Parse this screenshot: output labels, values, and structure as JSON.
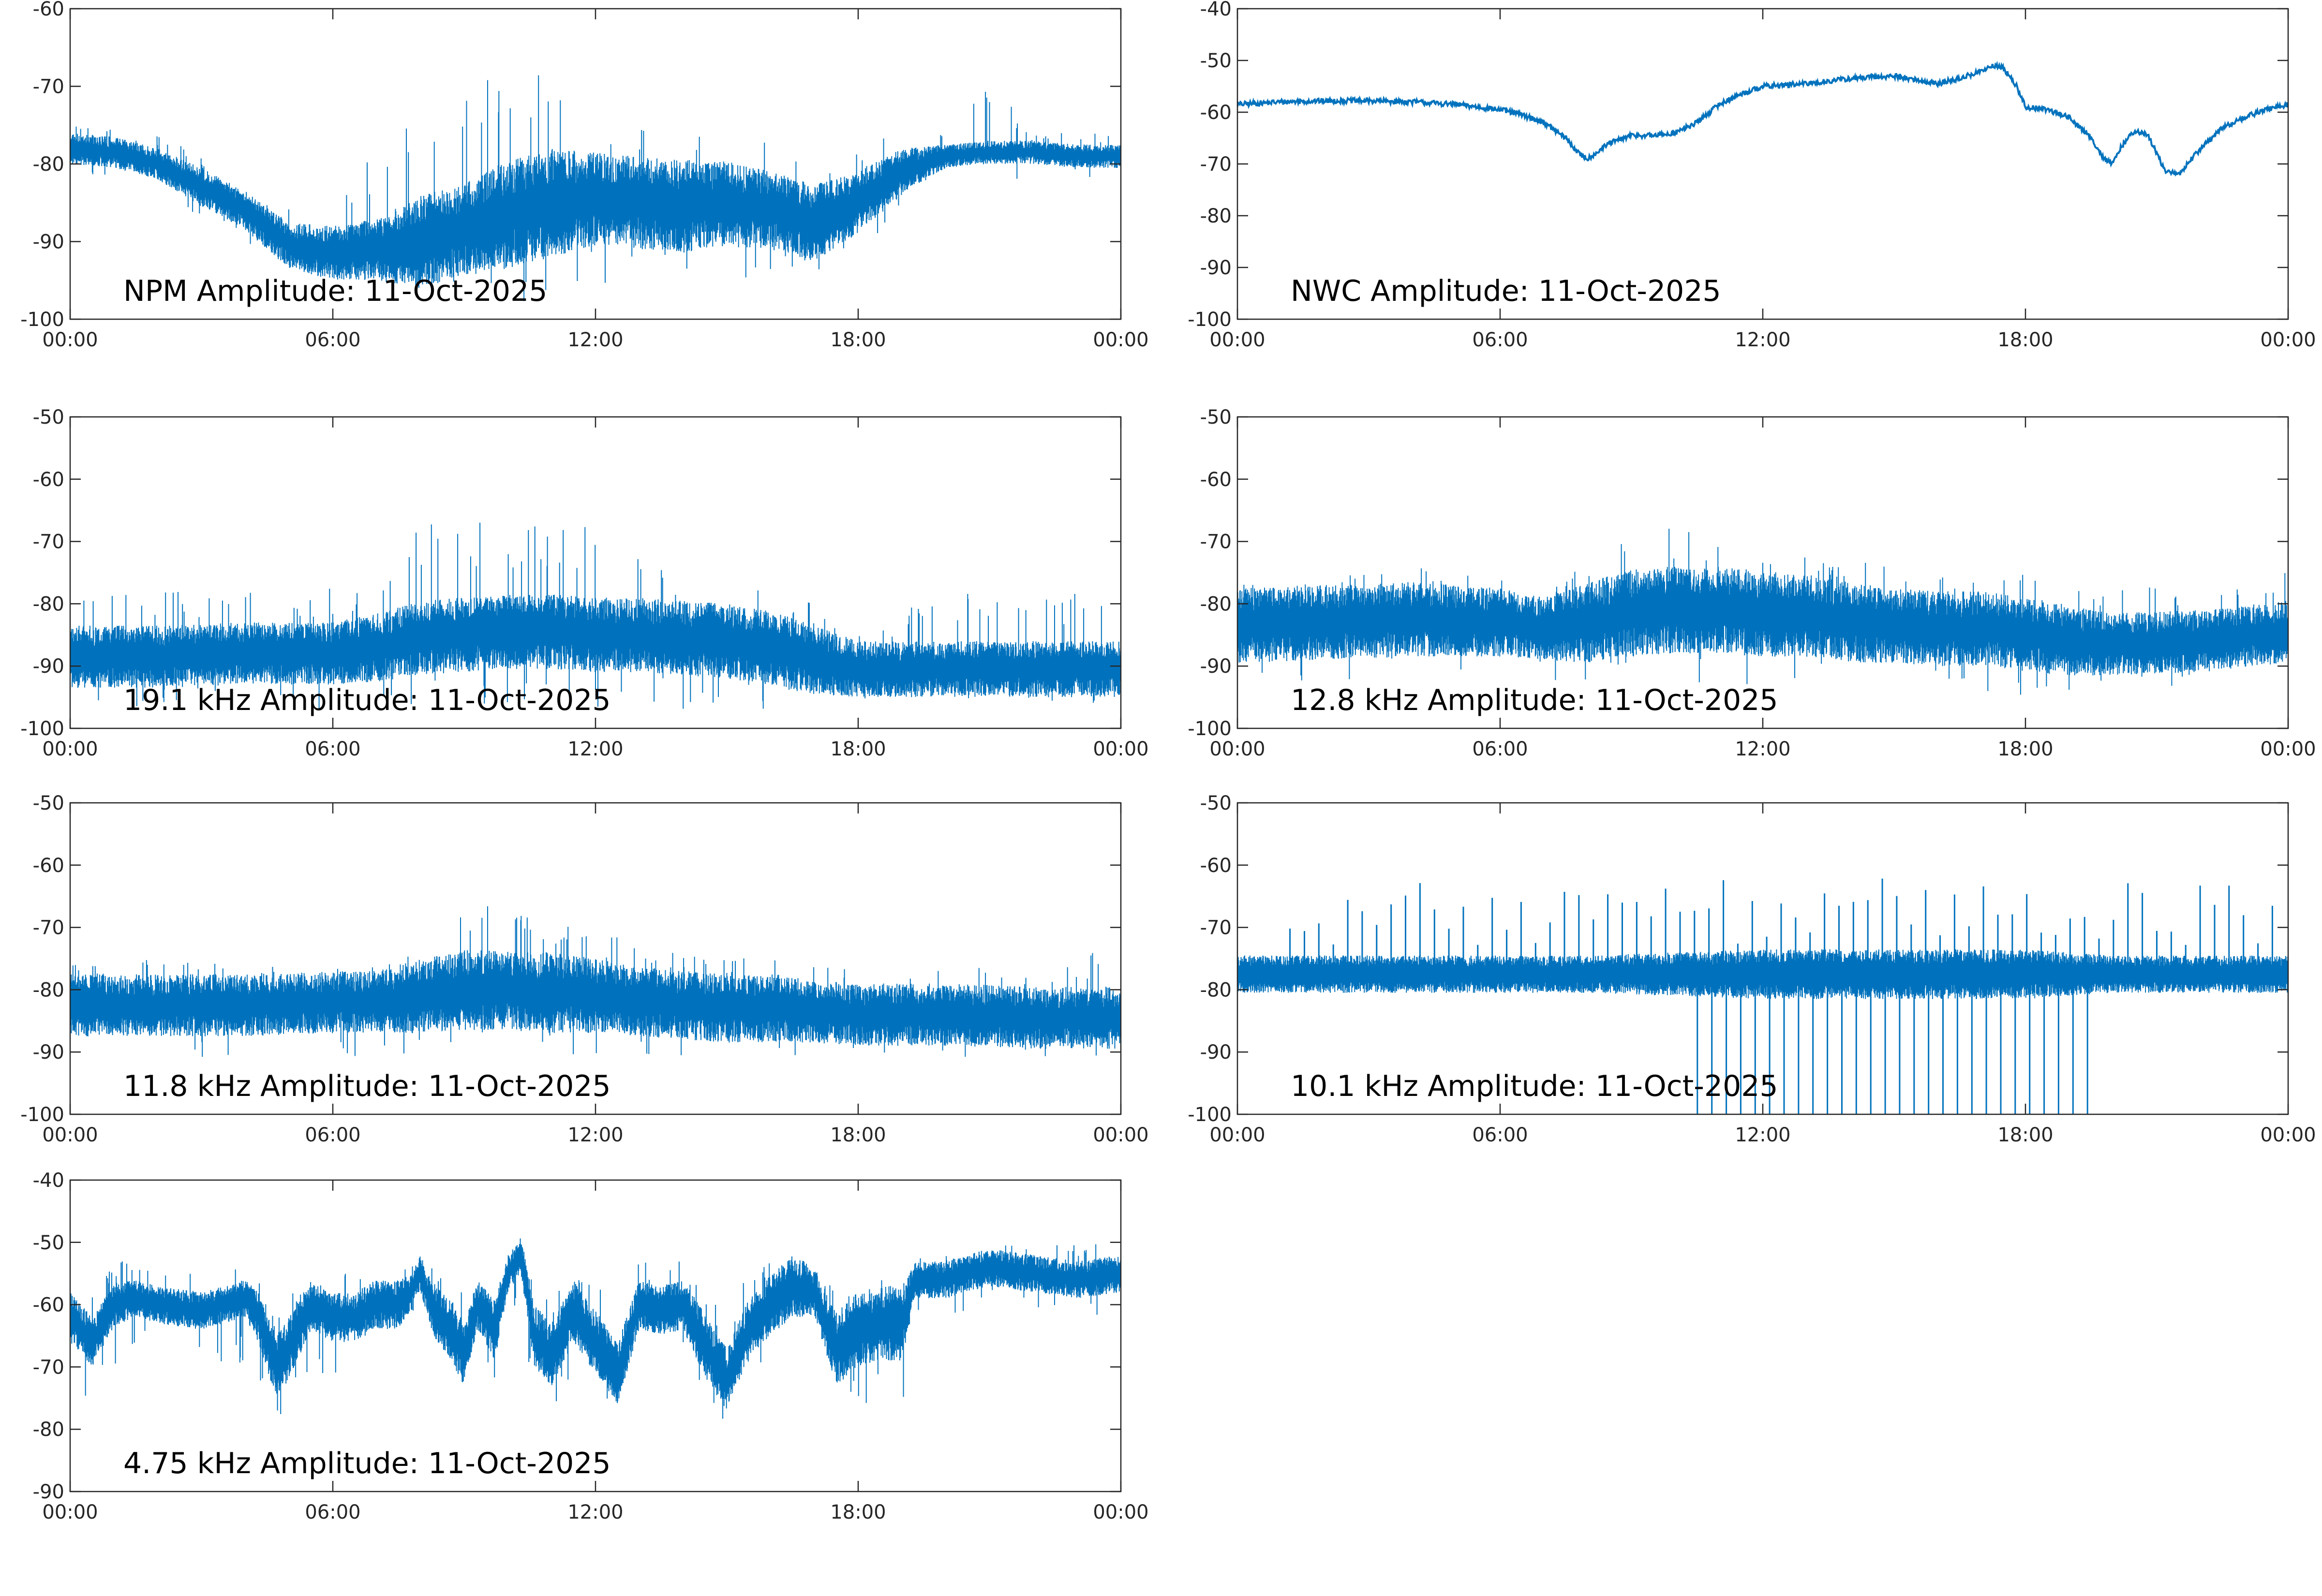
{
  "figure": {
    "line_color": "#0072BD",
    "axis_color": "#262626",
    "background": "#ffffff"
  },
  "chart_data": [
    {
      "type": "line",
      "title": "NPM Amplitude: 11-Oct-2025",
      "xlabel": "",
      "ylabel": "",
      "x_ticks": [
        "00:00",
        "06:00",
        "12:00",
        "18:00",
        "00:00"
      ],
      "xlim_hours": [
        0,
        24
      ],
      "ylim": [
        -100,
        -60
      ],
      "y_ticks": [
        -100,
        -90,
        -80,
        -70,
        -60
      ],
      "series": [
        {
          "name": "NPM",
          "style": "noisy",
          "x_hours": [
            0,
            1,
            2,
            3,
            4,
            5,
            6,
            7,
            8,
            9,
            10,
            11,
            12,
            13,
            14,
            15,
            16,
            17,
            18,
            19,
            20,
            21,
            22,
            23,
            24
          ],
          "center": [
            -78,
            -78.5,
            -80,
            -83,
            -86,
            -90.5,
            -91.5,
            -91,
            -90,
            -88.5,
            -86.5,
            -85,
            -84.5,
            -85,
            -85.5,
            -85,
            -86,
            -87.5,
            -85,
            -81,
            -79,
            -78.5,
            -78.5,
            -79,
            -79
          ],
          "spread": [
            2,
            2,
            2,
            2.5,
            2.5,
            3,
            3.5,
            4,
            6,
            6,
            7,
            7,
            6,
            6,
            6,
            5.5,
            5,
            5,
            4,
            3,
            1.5,
            1.5,
            1.5,
            1.5,
            1.5
          ],
          "spike_up_max": [
            -75,
            -75,
            -76,
            -79,
            -82,
            -85,
            -85,
            -78,
            -67,
            -70,
            -68,
            -68,
            -70,
            -75,
            -75,
            -76,
            -77,
            -80,
            -78,
            -75,
            -76,
            -69,
            -76,
            -76,
            -76
          ],
          "spike_down_min": [
            -82,
            -82,
            -83,
            -87,
            -90,
            -93,
            -95,
            -96,
            -97,
            -97,
            -98,
            -98,
            -96,
            -95,
            -95,
            -95,
            -95,
            -95,
            -93,
            -88,
            -91,
            -82,
            -82,
            -82,
            -82
          ]
        }
      ]
    },
    {
      "type": "line",
      "title": "NWC Amplitude: 11-Oct-2025",
      "xlabel": "",
      "ylabel": "",
      "x_ticks": [
        "00:00",
        "06:00",
        "12:00",
        "18:00",
        "00:00"
      ],
      "xlim_hours": [
        0,
        24
      ],
      "ylim": [
        -100,
        -40
      ],
      "y_ticks": [
        -100,
        -90,
        -80,
        -70,
        -60,
        -50,
        -40
      ],
      "series": [
        {
          "name": "NWC",
          "style": "smooth",
          "x_hours": [
            0,
            1,
            2,
            3,
            4,
            5,
            6,
            6.5,
            7,
            7.5,
            7.8,
            8,
            8.5,
            9,
            9.5,
            10,
            10.5,
            11,
            11.5,
            12,
            13,
            14,
            15,
            16,
            16.5,
            17,
            17.3,
            17.5,
            17.8,
            18,
            18.5,
            19,
            19.5,
            19.8,
            20,
            20.2,
            20.5,
            20.8,
            21,
            21.2,
            21.5,
            22,
            22.5,
            23,
            23.5,
            24
          ],
          "center": [
            -58.5,
            -58,
            -57.8,
            -57.8,
            -58,
            -58.5,
            -59.5,
            -60.5,
            -62,
            -65,
            -68,
            -69,
            -66,
            -64.5,
            -64.5,
            -64,
            -62,
            -58.5,
            -56.5,
            -55,
            -54.5,
            -53.5,
            -53,
            -54.5,
            -53.5,
            -52,
            -51,
            -51.5,
            -55,
            -59,
            -59.5,
            -61,
            -65,
            -69,
            -70,
            -66.5,
            -63.5,
            -64.5,
            -68,
            -71.5,
            -72,
            -67,
            -63,
            -61,
            -59.5,
            -58.5
          ],
          "spread": 0.5
        }
      ]
    },
    {
      "type": "line",
      "title": "19.1 kHz Amplitude: 11-Oct-2025",
      "xlabel": "",
      "ylabel": "",
      "x_ticks": [
        "00:00",
        "06:00",
        "12:00",
        "18:00",
        "00:00"
      ],
      "xlim_hours": [
        0,
        24
      ],
      "ylim": [
        -100,
        -50
      ],
      "y_ticks": [
        -100,
        -90,
        -80,
        -70,
        -60,
        -50
      ],
      "series": [
        {
          "name": "19.1 kHz",
          "style": "noisy",
          "x_hours": [
            0,
            2,
            4,
            6,
            7,
            8,
            9,
            10,
            11,
            12,
            13,
            14,
            15,
            16,
            17,
            18,
            19,
            20,
            22,
            24
          ],
          "center": [
            -88.5,
            -88.5,
            -88,
            -88,
            -87,
            -85.5,
            -85,
            -84.5,
            -84.5,
            -85,
            -85,
            -85.5,
            -86,
            -87,
            -89,
            -90.5,
            -90.5,
            -90.5,
            -90.5,
            -90.5
          ],
          "spread": [
            5,
            5,
            5,
            5,
            5.5,
            6,
            6,
            6,
            6,
            6,
            6,
            6,
            6,
            6,
            5.5,
            4.5,
            4.5,
            4.5,
            4.5,
            4.5
          ],
          "spike_up_max": [
            -78,
            -77,
            -78,
            -77,
            -76,
            -66,
            -67,
            -66,
            -66,
            -68,
            -72,
            -76,
            -78,
            -77,
            -80,
            -84,
            -81,
            -78,
            -79,
            -76
          ],
          "spike_down_min": [
            -97,
            -97,
            -97,
            -97,
            -97,
            -97,
            -97,
            -97,
            -97,
            -97,
            -97,
            -97,
            -97,
            -97,
            -97,
            -96,
            -96,
            -96,
            -96,
            -96
          ]
        }
      ]
    },
    {
      "type": "line",
      "title": "12.8 kHz Amplitude: 11-Oct-2025",
      "xlabel": "",
      "ylabel": "",
      "x_ticks": [
        "00:00",
        "06:00",
        "12:00",
        "18:00",
        "00:00"
      ],
      "xlim_hours": [
        0,
        24
      ],
      "ylim": [
        -100,
        -50
      ],
      "y_ticks": [
        -100,
        -90,
        -80,
        -70,
        -60,
        -50
      ],
      "series": [
        {
          "name": "12.8 kHz",
          "style": "noisy",
          "x_hours": [
            0,
            2,
            4,
            6,
            7,
            8,
            9,
            10,
            11,
            12,
            13,
            14,
            15,
            16,
            17,
            18,
            19,
            20,
            22,
            24
          ],
          "center": [
            -83.5,
            -83,
            -82.5,
            -83,
            -84,
            -83,
            -81.5,
            -81,
            -81,
            -81.5,
            -82,
            -83,
            -83.5,
            -84,
            -84,
            -85,
            -86,
            -86.5,
            -86,
            -84.5
          ],
          "spread": [
            6,
            6,
            6,
            5.5,
            5,
            6.5,
            7,
            7,
            7,
            7,
            6.5,
            6.5,
            6,
            6,
            6,
            6,
            5.5,
            5,
            5,
            5
          ],
          "spike_up_max": [
            -77,
            -75,
            -74,
            -76,
            -79,
            -73,
            -67,
            -67,
            -68,
            -69,
            -72,
            -73,
            -74,
            -74,
            -73,
            -75,
            -77,
            -78,
            -76,
            -75
          ],
          "spike_down_min": [
            -93,
            -93,
            -92,
            -93,
            -92,
            -93,
            -93,
            -93,
            -93,
            -93,
            -93,
            -93,
            -93,
            -93,
            -94,
            -95,
            -94,
            -94,
            -94,
            -92
          ]
        }
      ]
    },
    {
      "type": "line",
      "title": "11.8 kHz Amplitude: 11-Oct-2025",
      "xlabel": "",
      "ylabel": "",
      "x_ticks": [
        "00:00",
        "06:00",
        "12:00",
        "18:00",
        "00:00"
      ],
      "xlim_hours": [
        0,
        24
      ],
      "ylim": [
        -100,
        -50
      ],
      "y_ticks": [
        -100,
        -90,
        -80,
        -70,
        -60,
        -50
      ],
      "series": [
        {
          "name": "11.8 kHz",
          "style": "noisy",
          "x_hours": [
            0,
            2,
            4,
            6,
            7,
            8,
            9,
            10,
            11,
            12,
            13,
            14,
            15,
            16,
            17,
            18,
            19,
            20,
            22,
            24
          ],
          "center": [
            -82.5,
            -82.5,
            -82.5,
            -82,
            -82,
            -81,
            -80,
            -80,
            -80.5,
            -81,
            -82,
            -82.5,
            -83,
            -83,
            -83.5,
            -84,
            -84,
            -84,
            -84.5,
            -84.5
          ],
          "spread": [
            5,
            5,
            5,
            5,
            5,
            6,
            6.5,
            6.5,
            6.5,
            6,
            5.5,
            5.5,
            5.5,
            5.5,
            5,
            5,
            5,
            5,
            5,
            5
          ],
          "spike_up_max": [
            -75,
            -75,
            -76,
            -76,
            -76,
            -70,
            -66,
            -66,
            -67,
            -70,
            -72,
            -74,
            -74,
            -75,
            -76,
            -77,
            -77,
            -76,
            -76,
            -72
          ],
          "spike_down_min": [
            -91,
            -91,
            -91,
            -91,
            -91,
            -91,
            -91,
            -91,
            -92,
            -92,
            -91,
            -91,
            -91,
            -91,
            -91,
            -91,
            -91,
            -91,
            -91,
            -91
          ]
        }
      ]
    },
    {
      "type": "line",
      "title": "10.1 kHz Amplitude: 11-Oct-2025",
      "xlabel": "",
      "ylabel": "",
      "x_ticks": [
        "00:00",
        "06:00",
        "12:00",
        "18:00",
        "00:00"
      ],
      "xlim_hours": [
        0,
        24
      ],
      "ylim": [
        -100,
        -50
      ],
      "y_ticks": [
        -100,
        -90,
        -80,
        -70,
        -60,
        -50
      ],
      "series": [
        {
          "name": "10.1 kHz",
          "style": "pulsed",
          "x_hours": [
            0,
            2,
            4,
            6,
            8,
            10,
            12,
            14,
            16,
            18,
            20,
            22,
            24
          ],
          "center": [
            -77.5,
            -77.5,
            -77.5,
            -77.5,
            -77.5,
            -77.5,
            -77.5,
            -77.5,
            -77.5,
            -77.5,
            -77.5,
            -77.5,
            -77.5
          ],
          "spread": [
            3,
            3,
            3,
            3,
            3,
            3.5,
            4,
            4,
            4,
            4,
            3,
            3,
            3
          ],
          "pulse_period_hours": 0.33,
          "pulse_up_max": -62,
          "pulse_down_window_hours": [
            10.4,
            19.6
          ],
          "pulse_down_min": -100
        }
      ]
    },
    {
      "type": "line",
      "title": "4.75 kHz Amplitude: 11-Oct-2025",
      "xlabel": "",
      "ylabel": "",
      "x_ticks": [
        "00:00",
        "06:00",
        "12:00",
        "18:00",
        "00:00"
      ],
      "xlim_hours": [
        0,
        24
      ],
      "ylim": [
        -90,
        -40
      ],
      "y_ticks": [
        -90,
        -80,
        -70,
        -60,
        -50,
        -40
      ],
      "series": [
        {
          "name": "4.75 kHz",
          "style": "noisy",
          "x_hours": [
            0,
            0.5,
            1,
            1.5,
            2,
            3,
            4,
            4.3,
            4.7,
            5,
            5.5,
            6,
            6.5,
            7,
            7.5,
            7.8,
            8,
            8.3,
            8.7,
            9,
            9.3,
            9.7,
            10,
            10.3,
            10.6,
            11,
            11.5,
            12,
            12.5,
            13,
            13.5,
            14,
            14.3,
            14.7,
            15,
            15.5,
            16,
            16.5,
            17,
            17.5,
            18,
            18.5,
            19,
            19.3,
            19.7,
            20,
            21,
            22,
            23,
            24
          ],
          "center": [
            -62,
            -66,
            -60,
            -59,
            -60,
            -61,
            -59,
            -62,
            -70,
            -67,
            -60,
            -62,
            -62,
            -60,
            -60,
            -58,
            -55,
            -61,
            -64,
            -68,
            -60,
            -64,
            -55,
            -52,
            -65,
            -68,
            -61,
            -66,
            -71,
            -60,
            -61,
            -60,
            -64,
            -69,
            -72,
            -64,
            -60,
            -57,
            -58,
            -67,
            -64,
            -63,
            -63,
            -56,
            -56,
            -56,
            -54,
            -55,
            -56,
            -55
          ],
          "spread": [
            4,
            4,
            3.5,
            3,
            3,
            3,
            3,
            4,
            5,
            5,
            4,
            4,
            4,
            4,
            4,
            3,
            3,
            4,
            5,
            5,
            4,
            5,
            3,
            3,
            5,
            5,
            5,
            5,
            5,
            4,
            4,
            4,
            5,
            5,
            5,
            5,
            5,
            5,
            4,
            6,
            6,
            6,
            6,
            3,
            3,
            3,
            3,
            3,
            3,
            3
          ],
          "spike_up_max": [
            -54,
            -56,
            -53,
            -53,
            -54,
            -54,
            -53,
            -55,
            -62,
            -58,
            -55,
            -55,
            -55,
            -55,
            -55,
            -51,
            -50,
            -54,
            -56,
            -58,
            -55,
            -56,
            -49,
            -48,
            -56,
            -58,
            -56,
            -54,
            -58,
            -52,
            -53,
            -53,
            -55,
            -58,
            -60,
            -55,
            -53,
            -51,
            -51,
            -56,
            -56,
            -56,
            -56,
            -50,
            -50,
            -51,
            -50,
            -50,
            -50,
            -50
          ],
          "spike_down_min": [
            -75,
            -76,
            -72,
            -68,
            -68,
            -69,
            -70,
            -75,
            -80,
            -78,
            -70,
            -72,
            -72,
            -70,
            -68,
            -64,
            -62,
            -70,
            -74,
            -77,
            -70,
            -74,
            -63,
            -60,
            -76,
            -78,
            -72,
            -75,
            -78,
            -68,
            -69,
            -68,
            -74,
            -78,
            -79,
            -75,
            -70,
            -67,
            -68,
            -77,
            -76,
            -76,
            -77,
            -63,
            -63,
            -63,
            -60,
            -62,
            -62,
            -62
          ]
        }
      ]
    }
  ]
}
